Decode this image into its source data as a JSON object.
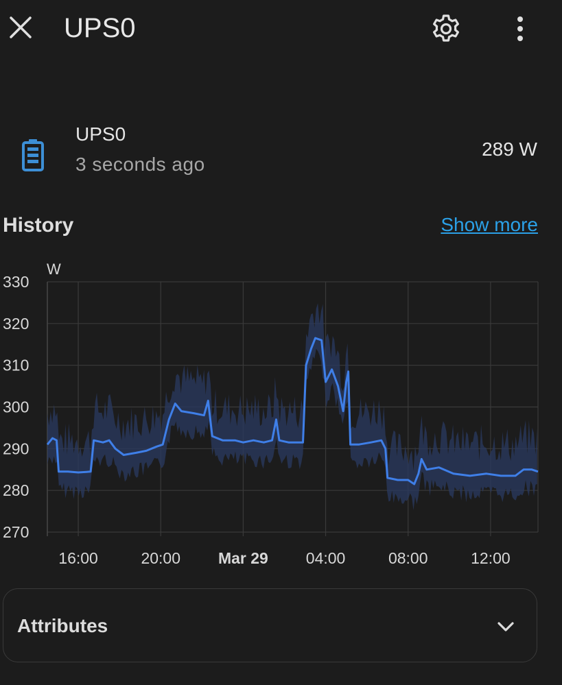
{
  "header": {
    "title": "UPS0",
    "icons": {
      "close": "close-icon",
      "settings": "gear-icon",
      "more": "more-vertical-icon"
    }
  },
  "entity": {
    "icon": "battery-icon",
    "icon_color": "#3d8fd6",
    "name": "UPS0",
    "last_updated": "3 seconds ago",
    "value": "289 W"
  },
  "history": {
    "title": "History",
    "show_more": "Show more"
  },
  "chart_data": {
    "type": "line",
    "ylabel": "W",
    "ylim": [
      270,
      330
    ],
    "y_ticks": [
      "330",
      "320",
      "310",
      "300",
      "290",
      "280",
      "270"
    ],
    "x_ticks": [
      "16:00",
      "20:00",
      "Mar 29",
      "04:00",
      "08:00",
      "12:00"
    ],
    "x_range_hours": [
      14.5,
      38.3
    ],
    "grid": true,
    "line_color": "#3f7fe8",
    "band_color": "#2a3a60",
    "series": [
      {
        "points": [
          [
            14.5,
            291
          ],
          [
            14.75,
            292.5
          ],
          [
            14.95,
            292
          ],
          [
            15.05,
            284.5
          ],
          [
            15.5,
            284.5
          ],
          [
            16.0,
            284.3
          ],
          [
            16.6,
            284.5
          ],
          [
            16.75,
            292
          ],
          [
            17.2,
            291.5
          ],
          [
            17.5,
            292
          ],
          [
            17.8,
            290
          ],
          [
            18.2,
            288.5
          ],
          [
            18.8,
            289
          ],
          [
            19.3,
            289.5
          ],
          [
            19.8,
            290.5
          ],
          [
            20.1,
            291
          ],
          [
            20.4,
            297
          ],
          [
            20.7,
            300.8
          ],
          [
            21.0,
            299
          ],
          [
            21.6,
            298.5
          ],
          [
            22.1,
            298
          ],
          [
            22.3,
            301.5
          ],
          [
            22.5,
            293
          ],
          [
            23.0,
            292
          ],
          [
            23.6,
            292
          ],
          [
            24.0,
            291.5
          ],
          [
            24.5,
            292
          ],
          [
            25.0,
            291.5
          ],
          [
            25.4,
            292
          ],
          [
            25.6,
            297
          ],
          [
            25.75,
            292
          ],
          [
            26.2,
            291.5
          ],
          [
            26.9,
            291.5
          ],
          [
            27.05,
            310
          ],
          [
            27.3,
            314
          ],
          [
            27.5,
            316.5
          ],
          [
            27.8,
            316
          ],
          [
            28.0,
            306
          ],
          [
            28.3,
            309
          ],
          [
            28.6,
            305
          ],
          [
            28.85,
            299
          ],
          [
            29.0,
            306
          ],
          [
            29.1,
            308.5
          ],
          [
            29.2,
            291
          ],
          [
            29.6,
            291
          ],
          [
            30.2,
            291.5
          ],
          [
            30.7,
            292
          ],
          [
            30.9,
            290
          ],
          [
            31.0,
            283
          ],
          [
            31.5,
            282.5
          ],
          [
            32.0,
            282.5
          ],
          [
            32.3,
            281.5
          ],
          [
            32.5,
            284
          ],
          [
            32.65,
            287.5
          ],
          [
            32.9,
            285
          ],
          [
            33.5,
            285.5
          ],
          [
            34.2,
            284
          ],
          [
            35.0,
            283.5
          ],
          [
            35.8,
            284
          ],
          [
            36.5,
            283.5
          ],
          [
            37.2,
            283.5
          ],
          [
            37.6,
            285
          ],
          [
            38.0,
            285
          ],
          [
            38.3,
            284.5
          ]
        ]
      }
    ]
  },
  "attributes": {
    "label": "Attributes",
    "icon": "chevron-down-icon"
  }
}
